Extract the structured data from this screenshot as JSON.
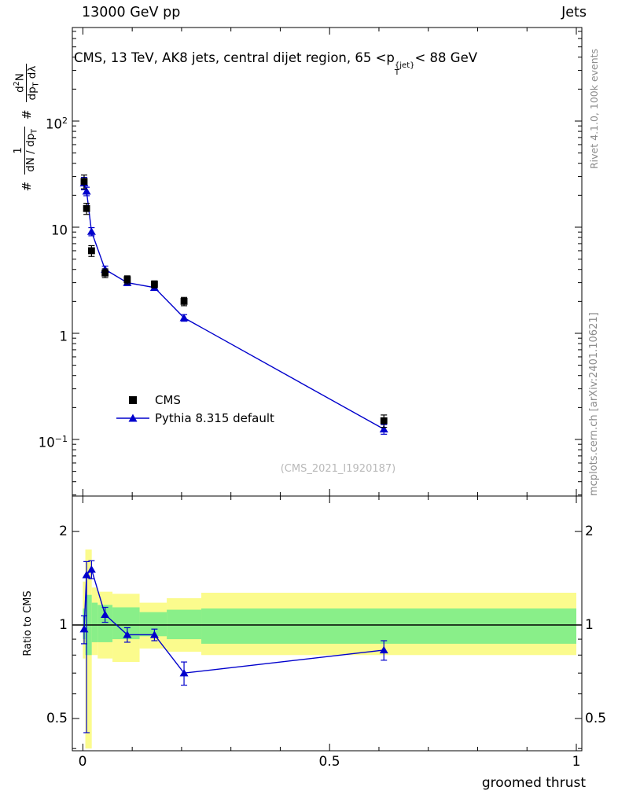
{
  "header": {
    "left_title": "13000 GeV pp",
    "right_title": "Jets"
  },
  "side_texts": {
    "rivet": "Rivet 4.1.0,  100k events",
    "mcplots": "mcplots.cern.ch [arXiv:2401.10621]"
  },
  "main_panel": {
    "title": {
      "text_before": "CMS, 13 TeV, AK8 jets, central dijet region, 65 <p",
      "p_sup": "{jet}",
      "p_sub": "T",
      "text_after": "< 88 GeV"
    },
    "watermark": "(CMS_2021_I1920187)",
    "ylabel": {
      "hash_1": "#",
      "frac1": {
        "num": "1",
        "den_main": "dN / dp",
        "den_sub": "T"
      },
      "hash_2": "#",
      "frac2": {
        "num_pre": "d",
        "num_sup": "2",
        "num_post": "N",
        "den_pre": "dp",
        "den_sub": "T",
        "den_post": " dλ"
      }
    },
    "legend": {
      "items": [
        {
          "label": "CMS",
          "marker": "filled-square",
          "color": "#000000"
        },
        {
          "label": "Pythia 8.315 default",
          "marker": "line-filled-triangle",
          "color": "#0000cc"
        }
      ]
    }
  },
  "ratio_panel": {
    "ylabel": "Ratio to CMS",
    "band_colors": {
      "outer": "#fbfb8d",
      "inner": "#89ef89"
    }
  },
  "axes": {
    "x": {
      "label": "groomed thrust",
      "ticks": [
        {
          "v": 0,
          "label": "0"
        },
        {
          "v": 0.5,
          "label": "0.5"
        },
        {
          "v": 1,
          "label": "1"
        }
      ],
      "minor_step": 0.1,
      "range": [
        -0.021,
        1.011
      ]
    },
    "y_main": {
      "scale": "log",
      "range": [
        0.029,
        760
      ],
      "ticks": [
        {
          "v": 100,
          "base": "10",
          "exp": "2"
        },
        {
          "v": 10,
          "base": "10",
          "exp": ""
        },
        {
          "v": 1,
          "base": "1",
          "exp": ""
        },
        {
          "v": 0.1,
          "base": "10",
          "exp": "−1"
        }
      ]
    },
    "y_ratio": {
      "scale": "log",
      "range": [
        0.394,
        2.6
      ],
      "ticks": [
        {
          "v": 2,
          "label": "2"
        },
        {
          "v": 1,
          "label": "1"
        },
        {
          "v": 0.5,
          "label": "0.5"
        }
      ],
      "minor_ticks": [
        0.4,
        0.6,
        0.7,
        0.8,
        0.9
      ]
    }
  },
  "chart_data": {
    "type": "scatter",
    "title": "CMS, 13 TeV, AK8 jets, central dijet region, 65 < pT^{jet} < 88 GeV",
    "xlabel": "groomed thrust",
    "ylabel": "# 1/(dN/dpT) d²N/(dpT dλ)",
    "legend_position": "middle-left",
    "panels": [
      {
        "name": "main",
        "yscale": "log",
        "ylim": [
          0.029,
          760
        ],
        "xlim": [
          -0.021,
          1.011
        ],
        "series": [
          {
            "name": "CMS",
            "marker": "square",
            "color": "#000000",
            "line": false,
            "x": [
              0.0025,
              0.0075,
              0.0175,
              0.045,
              0.09,
              0.145,
              0.205,
              0.61
            ],
            "y": [
              27,
              15,
              6.0,
              3.7,
              3.2,
              2.9,
              2.0,
              0.15
            ],
            "yerr": [
              4,
              1.8,
              0.7,
              0.35,
              0.28,
              0.22,
              0.18,
              0.02
            ]
          },
          {
            "name": "Pythia 8.315 default",
            "marker": "triangle",
            "color": "#0000cc",
            "line": true,
            "x": [
              0.0025,
              0.0075,
              0.0175,
              0.045,
              0.09,
              0.145,
              0.205,
              0.61
            ],
            "y": [
              26,
              21.8,
              9.1,
              4.0,
              3.0,
              2.7,
              1.4,
              0.125
            ],
            "yerr": [
              3.5,
              2.0,
              0.8,
              0.3,
              0.18,
              0.15,
              0.1,
              0.013
            ]
          }
        ]
      },
      {
        "name": "ratio",
        "yscale": "log",
        "ylim": [
          0.394,
          2.6
        ],
        "ref_line": 1,
        "bands": {
          "yellow": {
            "color": "#fbfb8d",
            "bins": [
              [
                0,
                0.005,
                0.78,
                1.38
              ],
              [
                0.005,
                0.018,
                0.4,
                1.75
              ],
              [
                0.018,
                0.03,
                0.8,
                1.32
              ],
              [
                0.03,
                0.06,
                0.78,
                1.28
              ],
              [
                0.06,
                0.115,
                0.76,
                1.26
              ],
              [
                0.115,
                0.17,
                0.84,
                1.18
              ],
              [
                0.17,
                0.24,
                0.82,
                1.22
              ],
              [
                0.24,
                1.0,
                0.8,
                1.27
              ]
            ]
          },
          "green": {
            "color": "#89ef89",
            "bins": [
              [
                0,
                0.005,
                0.9,
                1.13
              ],
              [
                0.005,
                0.018,
                0.8,
                1.25
              ],
              [
                0.018,
                0.03,
                0.88,
                1.18
              ],
              [
                0.03,
                0.06,
                0.88,
                1.16
              ],
              [
                0.06,
                0.115,
                0.9,
                1.14
              ],
              [
                0.115,
                0.17,
                0.92,
                1.1
              ],
              [
                0.17,
                0.24,
                0.9,
                1.12
              ],
              [
                0.24,
                1.0,
                0.87,
                1.13
              ]
            ]
          }
        },
        "series": [
          {
            "name": "Pythia 8.315 default / CMS",
            "marker": "triangle",
            "color": "#0000cc",
            "line": true,
            "x": [
              0.0025,
              0.0075,
              0.0175,
              0.045,
              0.09,
              0.145,
              0.205,
              0.61
            ],
            "y": [
              0.97,
              1.45,
              1.51,
              1.08,
              0.93,
              0.93,
              0.7,
              0.83
            ],
            "yerr_lo": [
              0.1,
              1.0,
              0.1,
              0.06,
              0.05,
              0.04,
              0.06,
              0.06
            ],
            "yerr_hi": [
              0.1,
              0.15,
              0.1,
              0.06,
              0.05,
              0.04,
              0.06,
              0.06
            ]
          }
        ]
      }
    ]
  }
}
